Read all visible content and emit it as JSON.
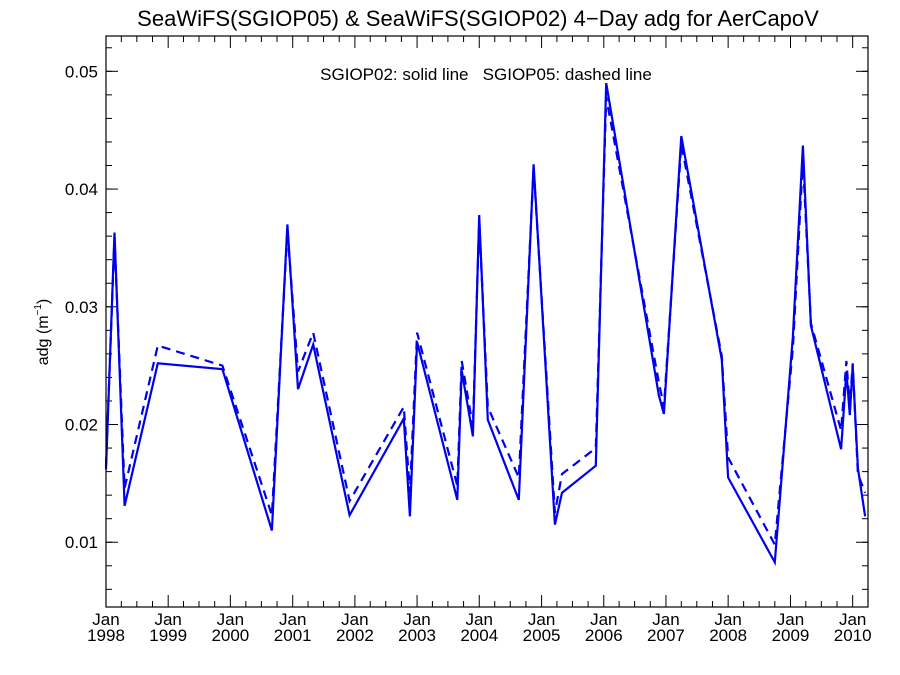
{
  "chart_data": {
    "type": "line",
    "title": "SeaWiFS(SGIOP05) & SeaWiFS(SGIOP02) 4−Day adg for AerCapoV",
    "ylabel_base": "adg (m",
    "ylabel_sup": "−1",
    "ylabel_end": ")",
    "annotation": "SGIOP02: solid line   SGIOP05: dashed line",
    "xlim": [
      "1998-01-01",
      "2010-04-01"
    ],
    "ylim": [
      0.0045,
      0.053
    ],
    "yticks": [
      {
        "value": 0.01,
        "label": "0.01"
      },
      {
        "value": 0.02,
        "label": "0.02"
      },
      {
        "value": 0.03,
        "label": "0.03"
      },
      {
        "value": 0.04,
        "label": "0.04"
      },
      {
        "value": 0.05,
        "label": "0.05"
      }
    ],
    "xticks": [
      {
        "date": "1998-01-01",
        "month": "Jan",
        "year": "1998"
      },
      {
        "date": "1999-01-01",
        "month": "Jan",
        "year": "1999"
      },
      {
        "date": "2000-01-01",
        "month": "Jan",
        "year": "2000"
      },
      {
        "date": "2001-01-01",
        "month": "Jan",
        "year": "2001"
      },
      {
        "date": "2002-01-01",
        "month": "Jan",
        "year": "2002"
      },
      {
        "date": "2003-01-01",
        "month": "Jan",
        "year": "2003"
      },
      {
        "date": "2004-01-01",
        "month": "Jan",
        "year": "2004"
      },
      {
        "date": "2005-01-01",
        "month": "Jan",
        "year": "2005"
      },
      {
        "date": "2006-01-01",
        "month": "Jan",
        "year": "2006"
      },
      {
        "date": "2007-01-01",
        "month": "Jan",
        "year": "2007"
      },
      {
        "date": "2008-01-01",
        "month": "Jan",
        "year": "2008"
      },
      {
        "date": "2009-01-01",
        "month": "Jan",
        "year": "2009"
      },
      {
        "date": "2010-01-01",
        "month": "Jan",
        "year": "2010"
      }
    ],
    "line_color": "#0000ee",
    "series": [
      {
        "style": "solid",
        "points": [
          [
            "1998-01-01",
            0.0162
          ],
          [
            "1998-02-20",
            0.0363
          ],
          [
            "1998-04-20",
            0.0131
          ],
          [
            "1998-11-01",
            0.0252
          ],
          [
            "1999-11-15",
            0.0247
          ],
          [
            "2000-09-01",
            0.011
          ],
          [
            "2000-12-01",
            0.037
          ],
          [
            "2001-02-01",
            0.023
          ],
          [
            "2001-05-01",
            0.0268
          ],
          [
            "2001-12-01",
            0.0123
          ],
          [
            "2002-10-15",
            0.0205
          ],
          [
            "2002-11-20",
            0.0122
          ],
          [
            "2003-01-01",
            0.027
          ],
          [
            "2003-08-25",
            0.0136
          ],
          [
            "2003-09-20",
            0.0246
          ],
          [
            "2003-11-25",
            0.019
          ],
          [
            "2004-01-01",
            0.0378
          ],
          [
            "2004-02-20",
            0.0204
          ],
          [
            "2004-08-20",
            0.0136
          ],
          [
            "2004-11-15",
            0.0421
          ],
          [
            "2005-03-20",
            0.0115
          ],
          [
            "2005-05-01",
            0.0142
          ],
          [
            "2005-11-15",
            0.0165
          ],
          [
            "2006-01-15",
            0.049
          ],
          [
            "2006-11-20",
            0.0225
          ],
          [
            "2006-12-20",
            0.0209
          ],
          [
            "2007-04-01",
            0.0445
          ],
          [
            "2007-11-25",
            0.0255
          ],
          [
            "2008-01-01",
            0.0155
          ],
          [
            "2008-10-01",
            0.0083
          ],
          [
            "2009-01-15",
            0.0275
          ],
          [
            "2009-03-15",
            0.0437
          ],
          [
            "2009-05-01",
            0.0284
          ],
          [
            "2009-10-25",
            0.0179
          ],
          [
            "2009-11-25",
            0.0245
          ],
          [
            "2009-12-15",
            0.0208
          ],
          [
            "2010-01-01",
            0.025
          ],
          [
            "2010-02-01",
            0.0163
          ],
          [
            "2010-03-15",
            0.0122
          ]
        ]
      },
      {
        "style": "dashed",
        "points": [
          [
            "1998-01-01",
            0.0165
          ],
          [
            "1998-02-20",
            0.0359
          ],
          [
            "1998-04-20",
            0.0146
          ],
          [
            "1998-11-01",
            0.0267
          ],
          [
            "1999-11-15",
            0.025
          ],
          [
            "2000-09-01",
            0.0123
          ],
          [
            "2000-12-01",
            0.0365
          ],
          [
            "2001-02-01",
            0.0245
          ],
          [
            "2001-05-01",
            0.0278
          ],
          [
            "2001-12-01",
            0.0135
          ],
          [
            "2002-10-15",
            0.0215
          ],
          [
            "2002-11-20",
            0.0142
          ],
          [
            "2003-01-01",
            0.0278
          ],
          [
            "2003-08-25",
            0.0148
          ],
          [
            "2003-09-20",
            0.0254
          ],
          [
            "2003-11-25",
            0.0198
          ],
          [
            "2004-01-01",
            0.0373
          ],
          [
            "2004-02-20",
            0.0215
          ],
          [
            "2004-08-20",
            0.0155
          ],
          [
            "2004-11-15",
            0.0418
          ],
          [
            "2005-03-20",
            0.0125
          ],
          [
            "2005-05-01",
            0.0158
          ],
          [
            "2005-11-15",
            0.018
          ],
          [
            "2006-01-15",
            0.0478
          ],
          [
            "2006-11-20",
            0.0236
          ],
          [
            "2006-12-20",
            0.0215
          ],
          [
            "2007-04-01",
            0.0438
          ],
          [
            "2007-11-25",
            0.0258
          ],
          [
            "2008-01-01",
            0.0172
          ],
          [
            "2008-10-01",
            0.0098
          ],
          [
            "2009-01-15",
            0.0265
          ],
          [
            "2009-03-15",
            0.0425
          ],
          [
            "2009-05-01",
            0.0286
          ],
          [
            "2009-10-25",
            0.0195
          ],
          [
            "2009-11-25",
            0.0254
          ],
          [
            "2009-12-15",
            0.0215
          ],
          [
            "2010-01-01",
            0.0252
          ],
          [
            "2010-02-01",
            0.0158
          ],
          [
            "2010-03-15",
            0.0142
          ]
        ]
      }
    ]
  }
}
